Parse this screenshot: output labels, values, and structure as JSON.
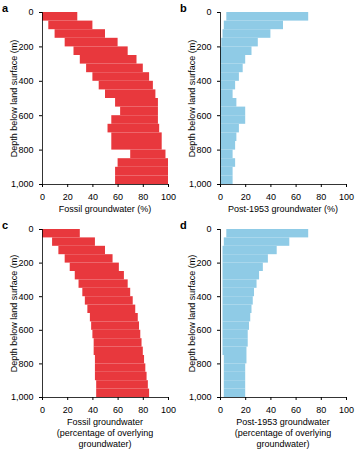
{
  "chart_data": [
    {
      "type": "bar",
      "orientation": "horizontal",
      "title": "a",
      "x_label": [
        "Fossil groundwater (%)"
      ],
      "y_label": "Depth below land surface (m)",
      "color": "#e8383d",
      "xlim": [
        0,
        100
      ],
      "xticks": [
        0,
        20,
        40,
        60,
        80,
        100
      ],
      "ylim": [
        0,
        1000
      ],
      "yticks": [
        0,
        200,
        400,
        600,
        800,
        1000
      ],
      "depth_bins": [
        0,
        50,
        100,
        150,
        200,
        250,
        300,
        350,
        400,
        450,
        500,
        550,
        600,
        650,
        700,
        750,
        800,
        850,
        900,
        950,
        1000
      ],
      "low": [
        0,
        5,
        10,
        18,
        25,
        30,
        35,
        40,
        45,
        50,
        58,
        62,
        55,
        52,
        55,
        55,
        70,
        60,
        58,
        58
      ],
      "high": [
        28,
        40,
        50,
        60,
        68,
        75,
        80,
        85,
        88,
        90,
        92,
        92,
        92,
        93,
        95,
        95,
        98,
        100,
        100,
        100
      ]
    },
    {
      "type": "bar",
      "orientation": "horizontal",
      "title": "b",
      "x_label": [
        "Post-1953 groundwater (%)"
      ],
      "y_label": "Depth below land surface (m)",
      "color": "#8fcbe6",
      "xlim": [
        0,
        100
      ],
      "xticks": [
        0,
        20,
        40,
        60,
        80,
        100
      ],
      "ylim": [
        0,
        1000
      ],
      "yticks": [
        0,
        200,
        400,
        600,
        800,
        1000
      ],
      "depth_bins": [
        0,
        50,
        100,
        150,
        200,
        250,
        300,
        350,
        400,
        450,
        500,
        550,
        600,
        650,
        700,
        750,
        800,
        850,
        900,
        950,
        1000
      ],
      "low": [
        5,
        3,
        2,
        1,
        0,
        0,
        0,
        0,
        0,
        0,
        0,
        0,
        0,
        0,
        0,
        0,
        0,
        0,
        0,
        0
      ],
      "high": [
        70,
        50,
        40,
        30,
        25,
        20,
        18,
        15,
        12,
        10,
        13,
        20,
        20,
        15,
        13,
        12,
        10,
        12,
        10,
        10
      ]
    },
    {
      "type": "bar",
      "orientation": "horizontal",
      "title": "c",
      "x_label": [
        "Fossil groundwater",
        "(percentage of overlying groundwater)"
      ],
      "y_label": "Depth below land surface (m)",
      "color": "#e8383d",
      "xlim": [
        0,
        100
      ],
      "xticks": [
        0,
        20,
        40,
        60,
        80,
        100
      ],
      "ylim": [
        0,
        1000
      ],
      "yticks": [
        0,
        200,
        400,
        600,
        800,
        1000
      ],
      "depth_bins": [
        0,
        50,
        100,
        150,
        200,
        250,
        300,
        350,
        400,
        450,
        500,
        550,
        600,
        650,
        700,
        750,
        800,
        850,
        900,
        950,
        1000
      ],
      "low": [
        0,
        8,
        13,
        18,
        22,
        26,
        29,
        32,
        34,
        36,
        38,
        39,
        40,
        41,
        41,
        42,
        42,
        42,
        43,
        43
      ],
      "high": [
        30,
        42,
        50,
        56,
        61,
        65,
        68,
        70,
        72,
        74,
        76,
        77,
        78,
        79,
        80,
        81,
        82,
        83,
        84,
        85
      ]
    },
    {
      "type": "bar",
      "orientation": "horizontal",
      "title": "d",
      "x_label": [
        "Post-1953 groundwater",
        "(percentage of overlying groundwater)"
      ],
      "y_label": "Depth below land surface (m)",
      "color": "#8fcbe6",
      "xlim": [
        0,
        100
      ],
      "xticks": [
        0,
        20,
        40,
        60,
        80,
        100
      ],
      "ylim": [
        0,
        1000
      ],
      "yticks": [
        0,
        200,
        400,
        600,
        800,
        1000
      ],
      "depth_bins": [
        0,
        50,
        100,
        150,
        200,
        250,
        300,
        350,
        400,
        450,
        500,
        550,
        600,
        650,
        700,
        750,
        800,
        850,
        900,
        950,
        1000
      ],
      "low": [
        5,
        3,
        2,
        2,
        2,
        2,
        2,
        2,
        2,
        2,
        2,
        2,
        2,
        2,
        2,
        3,
        3,
        3,
        3,
        3
      ],
      "high": [
        70,
        55,
        45,
        38,
        34,
        31,
        29,
        27,
        26,
        25,
        24,
        23,
        22,
        22,
        21,
        21,
        20,
        20,
        20,
        20
      ]
    }
  ]
}
